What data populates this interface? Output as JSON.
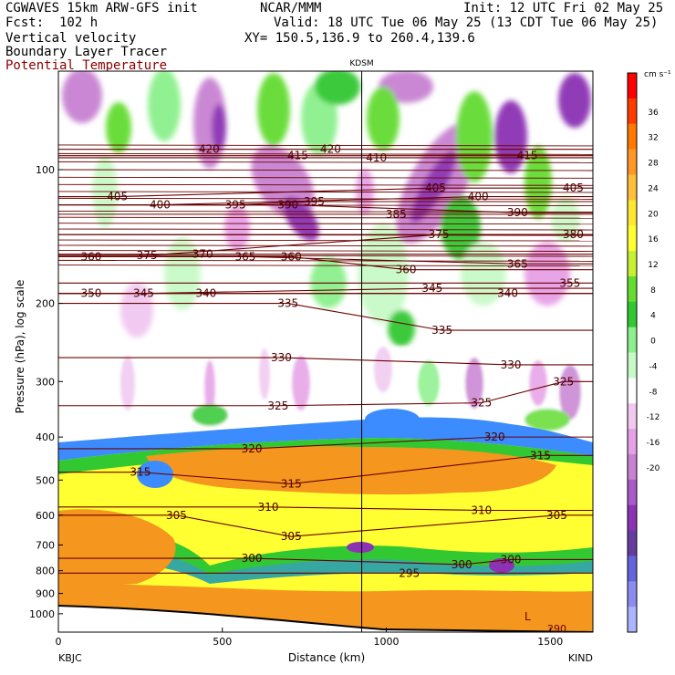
{
  "header": {
    "left1": "CGWAVES 15km ARW-GFS init",
    "left2": "Fcst:  102 h",
    "left3": "Vertical velocity",
    "left4": "Boundary Layer Tracer",
    "left5": "Potential Temperature",
    "mid1": "NCAR/MMM",
    "mid2": "Valid: 18 UTC Tue 06 May 25 (13 CDT Tue 06 May 25)",
    "mid3": "XY= 150.5,136.9 to 260.4,139.6",
    "right1": "Init: 12 UTC Fri 02 May 25",
    "station_marker": "KDSM",
    "left_station": "KBJC",
    "right_station": "KIND",
    "low_label": "L",
    "low_value": "290"
  },
  "colors": {
    "theta_contour": "#6b0000",
    "surface_line": "#000000",
    "orange_tracer": "#f5961e",
    "yellow_tracer": "#ffff32",
    "green_tracer": "#32c832",
    "blue_tracer": "#3c8cff",
    "purple": "#8c32b4",
    "light_purple": "#e6b4f0"
  },
  "chart_data": {
    "type": "heatmap",
    "title": "",
    "xlabel": "Distance (km)",
    "ylabel": "Pressure (hPa), log scale",
    "xlim": [
      0,
      1630
    ],
    "ylim_hPa": [
      1100,
      60
    ],
    "log_y": true,
    "x_ticks": [
      0,
      500,
      1000,
      1500
    ],
    "y_ticks": [
      100,
      200,
      300,
      400,
      500,
      600,
      700,
      800,
      900,
      1000
    ],
    "colorbar": {
      "unit": "cm s⁻¹",
      "ticks": [
        36,
        32,
        28,
        24,
        20,
        16,
        12,
        8,
        4,
        0,
        -4,
        -8,
        -12,
        -16,
        -20
      ],
      "colors": [
        "#ff0000",
        "#ff3c00",
        "#ff7800",
        "#ff9628",
        "#ffbe3c",
        "#ffe632",
        "#ffff32",
        "#c8f032",
        "#64dc32",
        "#32c832",
        "#8cf08c",
        "#c8fac8",
        "#ffffff",
        "#f0c8f0",
        "#e6a0e6",
        "#c882d2",
        "#aa5ac8",
        "#8c32b4",
        "#643ca0",
        "#6464dc",
        "#8c8cf0",
        "#aab4ff"
      ]
    },
    "theta_contours": [
      {
        "label": "420",
        "x": 460,
        "p": 90
      },
      {
        "label": "415",
        "x": 730,
        "p": 93
      },
      {
        "label": "420",
        "x": 830,
        "p": 90
      },
      {
        "label": "410",
        "x": 970,
        "p": 94
      },
      {
        "label": "415",
        "x": 1430,
        "p": 93
      },
      {
        "label": "405",
        "x": 180,
        "p": 115
      },
      {
        "label": "400",
        "x": 310,
        "p": 120
      },
      {
        "label": "395",
        "x": 540,
        "p": 120
      },
      {
        "label": "390",
        "x": 700,
        "p": 120
      },
      {
        "label": "395",
        "x": 780,
        "p": 118
      },
      {
        "label": "385",
        "x": 1030,
        "p": 126
      },
      {
        "label": "405",
        "x": 1150,
        "p": 110
      },
      {
        "label": "400",
        "x": 1280,
        "p": 115
      },
      {
        "label": "390",
        "x": 1400,
        "p": 125
      },
      {
        "label": "405",
        "x": 1570,
        "p": 110
      },
      {
        "label": "375",
        "x": 1160,
        "p": 140
      },
      {
        "label": "380",
        "x": 1570,
        "p": 140
      },
      {
        "label": "360",
        "x": 100,
        "p": 157
      },
      {
        "label": "375",
        "x": 270,
        "p": 156
      },
      {
        "label": "370",
        "x": 440,
        "p": 155
      },
      {
        "label": "365",
        "x": 570,
        "p": 157
      },
      {
        "label": "360",
        "x": 710,
        "p": 157
      },
      {
        "label": "365",
        "x": 1400,
        "p": 163
      },
      {
        "label": "360",
        "x": 1060,
        "p": 168
      },
      {
        "label": "355",
        "x": 1560,
        "p": 180
      },
      {
        "label": "350",
        "x": 100,
        "p": 190
      },
      {
        "label": "345",
        "x": 260,
        "p": 190
      },
      {
        "label": "340",
        "x": 450,
        "p": 190
      },
      {
        "label": "335",
        "x": 700,
        "p": 200
      },
      {
        "label": "345",
        "x": 1140,
        "p": 185
      },
      {
        "label": "340",
        "x": 1370,
        "p": 190
      },
      {
        "label": "335",
        "x": 1170,
        "p": 230
      },
      {
        "label": "330",
        "x": 680,
        "p": 265
      },
      {
        "label": "330",
        "x": 1380,
        "p": 275
      },
      {
        "label": "325",
        "x": 670,
        "p": 340
      },
      {
        "label": "325",
        "x": 1290,
        "p": 335
      },
      {
        "label": "325",
        "x": 1540,
        "p": 300
      },
      {
        "label": "320",
        "x": 590,
        "p": 425
      },
      {
        "label": "320",
        "x": 1330,
        "p": 400
      },
      {
        "label": "315",
        "x": 250,
        "p": 480
      },
      {
        "label": "315",
        "x": 710,
        "p": 510
      },
      {
        "label": "315",
        "x": 1470,
        "p": 440
      },
      {
        "label": "310",
        "x": 640,
        "p": 575
      },
      {
        "label": "310",
        "x": 1290,
        "p": 585
      },
      {
        "label": "305",
        "x": 360,
        "p": 600
      },
      {
        "label": "305",
        "x": 710,
        "p": 670
      },
      {
        "label": "305",
        "x": 1520,
        "p": 600
      },
      {
        "label": "300",
        "x": 590,
        "p": 750
      },
      {
        "label": "300",
        "x": 1230,
        "p": 775
      },
      {
        "label": "300",
        "x": 1380,
        "p": 755
      },
      {
        "label": "295",
        "x": 1070,
        "p": 810
      }
    ],
    "station_x_km": 925
  }
}
